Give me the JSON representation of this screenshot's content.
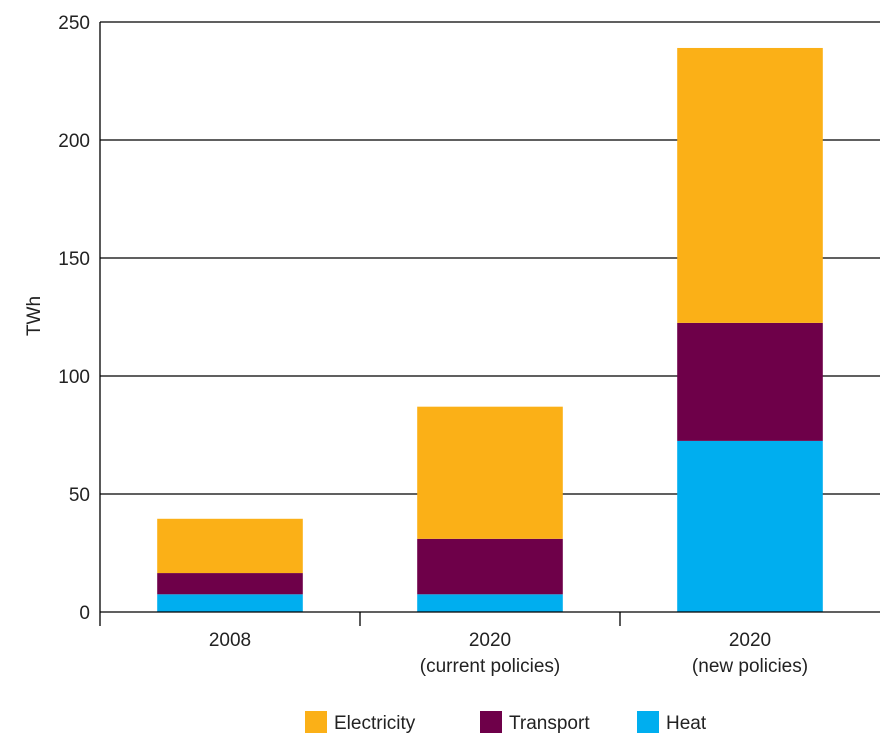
{
  "chart_data": {
    "type": "bar",
    "stacked": true,
    "ylabel": "TWh",
    "ylim": [
      0,
      250
    ],
    "yticks": [
      0,
      50,
      100,
      150,
      200,
      250
    ],
    "grid": true,
    "legend_position": "bottom",
    "categories": [
      [
        "2008"
      ],
      [
        "2020",
        "(current policies)"
      ],
      [
        "2020",
        "(new policies)"
      ]
    ],
    "series": [
      {
        "name": "Heat",
        "color": "#00AEEF",
        "values": [
          7.5,
          7.5,
          72.5
        ]
      },
      {
        "name": "Transport",
        "color": "#6E0049",
        "values": [
          9,
          23.5,
          50
        ]
      },
      {
        "name": "Electricity",
        "color": "#FBB017",
        "values": [
          23,
          56,
          116.5
        ]
      }
    ],
    "legend_order": [
      "Electricity",
      "Transport",
      "Heat"
    ]
  }
}
